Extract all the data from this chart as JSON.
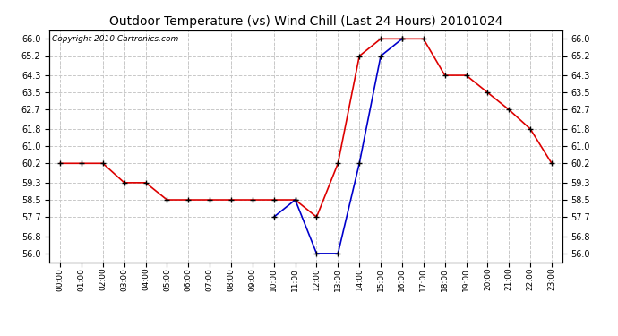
{
  "title": "Outdoor Temperature (vs) Wind Chill (Last 24 Hours) 20101024",
  "copyright_text": "Copyright 2010 Cartronics.com",
  "hours": [
    0,
    1,
    2,
    3,
    4,
    5,
    6,
    7,
    8,
    9,
    10,
    11,
    12,
    13,
    14,
    15,
    16,
    17,
    18,
    19,
    20,
    21,
    22,
    23
  ],
  "temp_red": [
    60.2,
    60.2,
    60.2,
    59.3,
    59.3,
    58.5,
    58.5,
    58.5,
    58.5,
    58.5,
    58.5,
    58.5,
    57.7,
    60.2,
    65.2,
    66.0,
    66.0,
    66.0,
    64.3,
    64.3,
    63.5,
    62.7,
    61.8,
    60.2
  ],
  "wind_chill_blue": [
    null,
    null,
    null,
    null,
    null,
    null,
    null,
    null,
    null,
    null,
    57.7,
    58.5,
    56.0,
    56.0,
    60.2,
    65.2,
    66.0,
    null,
    null,
    null,
    null,
    null,
    null,
    null
  ],
  "ylim": [
    55.6,
    66.4
  ],
  "yticks": [
    56.0,
    56.8,
    57.7,
    58.5,
    59.3,
    60.2,
    61.0,
    61.8,
    62.7,
    63.5,
    64.3,
    65.2,
    66.0
  ],
  "bg_color": "#ffffff",
  "plot_bg": "#ffffff",
  "grid_color": "#c8c8c8",
  "red_color": "#dd0000",
  "blue_color": "#0000cc",
  "title_fontsize": 10,
  "copyright_fontsize": 6.5,
  "marker_color": "#000000"
}
